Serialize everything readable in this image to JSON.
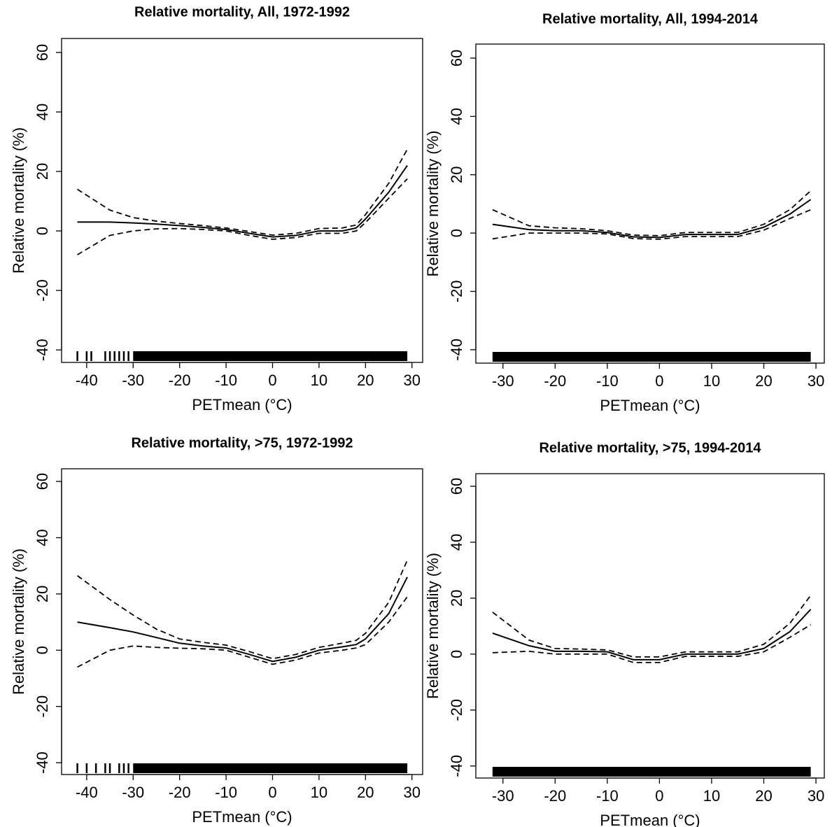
{
  "chart_data": [
    {
      "type": "line",
      "title": "Relative mortality, All, 1972-1992",
      "x_label": "PETmean (°C)",
      "y_label": "Relative mortality (%)",
      "x": [
        -42,
        -35,
        -30,
        -25,
        -20,
        -15,
        -10,
        -5,
        0,
        5,
        10,
        15,
        18,
        20,
        25,
        29
      ],
      "series": [
        {
          "color": "#000000",
          "dashed": false,
          "values": [
            3,
            3,
            2.7,
            2.3,
            1.8,
            1.2,
            0.5,
            -0.8,
            -2,
            -1.5,
            0,
            0,
            1,
            4,
            13,
            22
          ]
        },
        {
          "color": "#000000",
          "dashed": true,
          "values": [
            14,
            7,
            4.5,
            3.3,
            2.5,
            1.8,
            1,
            -0.2,
            -1.4,
            -0.8,
            0.8,
            1,
            2,
            5.5,
            16,
            27.5
          ]
        },
        {
          "color": "#000000",
          "dashed": true,
          "values": [
            -8,
            -1.5,
            0,
            0.7,
            0.8,
            0.5,
            0,
            -1.5,
            -2.8,
            -2.2,
            -0.8,
            -0.8,
            0,
            2.8,
            11,
            17.5
          ]
        }
      ],
      "rug": [
        -42,
        -40,
        -39,
        -36,
        -35,
        -34,
        -33,
        -32,
        -31
      ],
      "rug_range": [
        -30,
        29
      ],
      "xlim": [
        -45.4,
        32.3
      ],
      "xticks": [
        -40,
        -30,
        -20,
        -10,
        0,
        10,
        20,
        30
      ],
      "ylim": [
        -44.2,
        64.7
      ],
      "yticks": [
        -40,
        -20,
        0,
        20,
        40,
        60
      ]
    },
    {
      "type": "line",
      "title": "Relative mortality, All, 1994-2014",
      "x_label": "PETmean (°C)",
      "y_label": "Relative mortality (%)",
      "x": [
        -32,
        -25,
        -20,
        -15,
        -10,
        -5,
        0,
        5,
        10,
        15,
        20,
        25,
        29
      ],
      "series": [
        {
          "color": "#000000",
          "dashed": false,
          "values": [
            3,
            1.2,
            0.8,
            0.8,
            0.2,
            -1.3,
            -1.5,
            -0.5,
            -0.5,
            -0.5,
            2,
            6.5,
            11.5
          ]
        },
        {
          "color": "#000000",
          "dashed": true,
          "values": [
            8,
            2.5,
            1.8,
            1.5,
            0.8,
            -0.7,
            -0.9,
            0.2,
            0.2,
            0.2,
            3,
            8,
            14.5
          ]
        },
        {
          "color": "#000000",
          "dashed": true,
          "values": [
            -2,
            0,
            0,
            0,
            -0.3,
            -1.9,
            -2.1,
            -1.2,
            -1.2,
            -1.2,
            1,
            5,
            8
          ]
        }
      ],
      "rug": [],
      "rug_range": [
        -32,
        29
      ],
      "xlim": [
        -35.2,
        31.6
      ],
      "xticks": [
        -30,
        -20,
        -10,
        0,
        10,
        20,
        30
      ],
      "ylim": [
        -44.6,
        64.8
      ],
      "yticks": [
        -40,
        -20,
        0,
        20,
        40,
        60
      ]
    },
    {
      "type": "line",
      "title": "Relative mortality, >75, 1972-1992",
      "x_label": "PETmean (°C)",
      "y_label": "Relative mortality (%)",
      "x": [
        -42,
        -35,
        -30,
        -25,
        -20,
        -15,
        -10,
        -5,
        0,
        5,
        10,
        15,
        18,
        20,
        25,
        29
      ],
      "series": [
        {
          "color": "#000000",
          "dashed": false,
          "values": [
            10,
            8,
            6.5,
            4.5,
            2.5,
            1.5,
            0.8,
            -1.5,
            -4,
            -2.5,
            0,
            1.2,
            2,
            4,
            13,
            26
          ]
        },
        {
          "color": "#000000",
          "dashed": true,
          "values": [
            26.5,
            18,
            12.5,
            7.5,
            4,
            2.8,
            1.8,
            -0.5,
            -3,
            -1.5,
            1,
            2.5,
            3.5,
            6,
            17,
            32
          ]
        },
        {
          "color": "#000000",
          "dashed": true,
          "values": [
            -6,
            0,
            1.5,
            1,
            0.7,
            0.5,
            0,
            -2.5,
            -5,
            -3.5,
            -1,
            0,
            0.8,
            2,
            10,
            19
          ]
        }
      ],
      "rug": [
        -42,
        -40,
        -38,
        -36,
        -35,
        -33,
        -32,
        -31
      ],
      "rug_range": [
        -30,
        29
      ],
      "xlim": [
        -45.4,
        32.3
      ],
      "xticks": [
        -40,
        -30,
        -20,
        -10,
        0,
        10,
        20,
        30
      ],
      "ylim": [
        -44.2,
        64.5
      ],
      "yticks": [
        -40,
        -20,
        0,
        20,
        40,
        60
      ]
    },
    {
      "type": "line",
      "title": "Relative mortality, >75, 1994-2014",
      "x_label": "PETmean (°C)",
      "y_label": "Relative mortality (%)",
      "x": [
        -32,
        -25,
        -20,
        -15,
        -10,
        -5,
        0,
        5,
        10,
        15,
        20,
        25,
        29
      ],
      "series": [
        {
          "color": "#000000",
          "dashed": false,
          "values": [
            7.5,
            3,
            1,
            1,
            0.8,
            -2,
            -2,
            0,
            0,
            0,
            2,
            8,
            16
          ]
        },
        {
          "color": "#000000",
          "dashed": true,
          "values": [
            15,
            5,
            2,
            1.8,
            1.5,
            -1,
            -1,
            0.8,
            0.8,
            0.8,
            3.5,
            11,
            21
          ]
        },
        {
          "color": "#000000",
          "dashed": true,
          "values": [
            0.5,
            1,
            0,
            0,
            0,
            -3,
            -3,
            -0.8,
            -0.8,
            -0.8,
            0.8,
            6,
            10.5
          ]
        }
      ],
      "rug": [],
      "rug_range": [
        -32,
        29
      ],
      "xlim": [
        -35.2,
        31.6
      ],
      "xticks": [
        -30,
        -20,
        -10,
        0,
        10,
        20,
        30
      ],
      "ylim": [
        -44.3,
        64.5
      ],
      "yticks": [
        -40,
        -20,
        0,
        20,
        40,
        60
      ]
    }
  ]
}
